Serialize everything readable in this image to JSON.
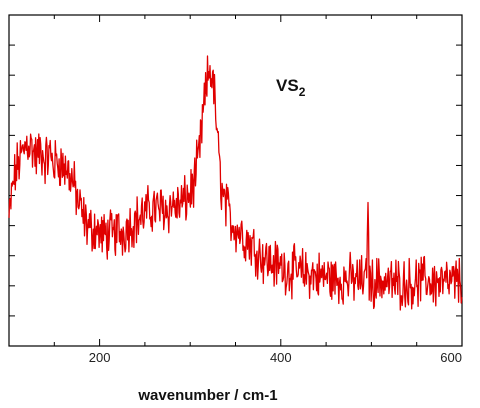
{
  "chart_data": {
    "type": "line",
    "title": "",
    "xlabel": "wavenumber / cm-1",
    "ylabel": "",
    "xlim": [
      100,
      600
    ],
    "x_ticks": [
      200,
      400,
      600
    ],
    "y_ticks_labeled": false,
    "grid": false,
    "annotation": {
      "main": "VS",
      "subscript": "2"
    },
    "series": [
      {
        "color": "#e00000",
        "noise": "high",
        "x": [
          100,
          105,
          110,
          115,
          120,
          125,
          130,
          135,
          140,
          145,
          150,
          155,
          160,
          165,
          170,
          175,
          180,
          185,
          190,
          195,
          200,
          205,
          210,
          215,
          220,
          225,
          230,
          235,
          240,
          245,
          250,
          255,
          260,
          265,
          270,
          275,
          280,
          285,
          290,
          295,
          300,
          305,
          310,
          315,
          318,
          320,
          322,
          325,
          328,
          330,
          333,
          336,
          340,
          345,
          350,
          360,
          370,
          380,
          390,
          400,
          410,
          420,
          430,
          440,
          450,
          460,
          470,
          480,
          490,
          500,
          510,
          520,
          530,
          540,
          550,
          560,
          570,
          580,
          590,
          600
        ],
        "y": [
          0.38,
          0.5,
          0.55,
          0.58,
          0.62,
          0.6,
          0.57,
          0.59,
          0.56,
          0.58,
          0.55,
          0.56,
          0.54,
          0.53,
          0.5,
          0.45,
          0.4,
          0.37,
          0.35,
          0.36,
          0.34,
          0.33,
          0.34,
          0.33,
          0.35,
          0.34,
          0.36,
          0.37,
          0.38,
          0.39,
          0.4,
          0.41,
          0.42,
          0.41,
          0.42,
          0.41,
          0.43,
          0.42,
          0.43,
          0.44,
          0.46,
          0.5,
          0.58,
          0.72,
          0.78,
          0.82,
          0.84,
          0.8,
          0.72,
          0.62,
          0.52,
          0.45,
          0.42,
          0.38,
          0.36,
          0.33,
          0.3,
          0.27,
          0.25,
          0.24,
          0.23,
          0.22,
          0.22,
          0.21,
          0.21,
          0.2,
          0.2,
          0.2,
          0.2,
          0.19,
          0.2,
          0.19,
          0.19,
          0.19,
          0.19,
          0.2,
          0.19,
          0.19,
          0.19,
          0.2
        ]
      }
    ]
  }
}
